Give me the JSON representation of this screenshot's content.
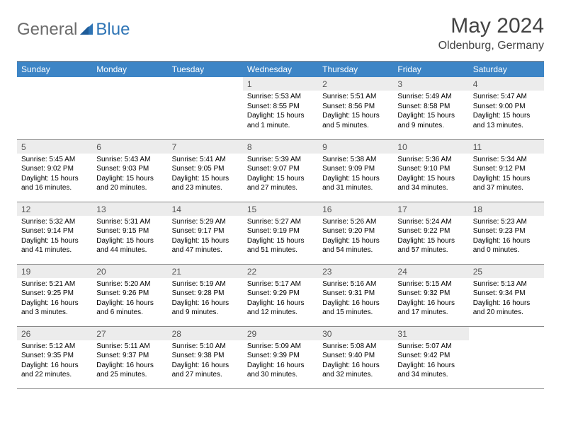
{
  "brand": {
    "general": "General",
    "blue": "Blue"
  },
  "title": "May 2024",
  "location": "Oldenburg, Germany",
  "colors": {
    "header_bg": "#3d85c6",
    "header_fg": "#ffffff",
    "daynum_bg": "#ececec",
    "daynum_fg": "#555555",
    "rule": "#888888",
    "logo_blue": "#2e74b5",
    "logo_gray": "#6b6b6b"
  },
  "dow": [
    "Sunday",
    "Monday",
    "Tuesday",
    "Wednesday",
    "Thursday",
    "Friday",
    "Saturday"
  ],
  "weeks": [
    [
      null,
      null,
      null,
      {
        "n": "1",
        "sr": "5:53 AM",
        "ss": "8:55 PM",
        "dl": "15 hours and 1 minute."
      },
      {
        "n": "2",
        "sr": "5:51 AM",
        "ss": "8:56 PM",
        "dl": "15 hours and 5 minutes."
      },
      {
        "n": "3",
        "sr": "5:49 AM",
        "ss": "8:58 PM",
        "dl": "15 hours and 9 minutes."
      },
      {
        "n": "4",
        "sr": "5:47 AM",
        "ss": "9:00 PM",
        "dl": "15 hours and 13 minutes."
      }
    ],
    [
      {
        "n": "5",
        "sr": "5:45 AM",
        "ss": "9:02 PM",
        "dl": "15 hours and 16 minutes."
      },
      {
        "n": "6",
        "sr": "5:43 AM",
        "ss": "9:03 PM",
        "dl": "15 hours and 20 minutes."
      },
      {
        "n": "7",
        "sr": "5:41 AM",
        "ss": "9:05 PM",
        "dl": "15 hours and 23 minutes."
      },
      {
        "n": "8",
        "sr": "5:39 AM",
        "ss": "9:07 PM",
        "dl": "15 hours and 27 minutes."
      },
      {
        "n": "9",
        "sr": "5:38 AM",
        "ss": "9:09 PM",
        "dl": "15 hours and 31 minutes."
      },
      {
        "n": "10",
        "sr": "5:36 AM",
        "ss": "9:10 PM",
        "dl": "15 hours and 34 minutes."
      },
      {
        "n": "11",
        "sr": "5:34 AM",
        "ss": "9:12 PM",
        "dl": "15 hours and 37 minutes."
      }
    ],
    [
      {
        "n": "12",
        "sr": "5:32 AM",
        "ss": "9:14 PM",
        "dl": "15 hours and 41 minutes."
      },
      {
        "n": "13",
        "sr": "5:31 AM",
        "ss": "9:15 PM",
        "dl": "15 hours and 44 minutes."
      },
      {
        "n": "14",
        "sr": "5:29 AM",
        "ss": "9:17 PM",
        "dl": "15 hours and 47 minutes."
      },
      {
        "n": "15",
        "sr": "5:27 AM",
        "ss": "9:19 PM",
        "dl": "15 hours and 51 minutes."
      },
      {
        "n": "16",
        "sr": "5:26 AM",
        "ss": "9:20 PM",
        "dl": "15 hours and 54 minutes."
      },
      {
        "n": "17",
        "sr": "5:24 AM",
        "ss": "9:22 PM",
        "dl": "15 hours and 57 minutes."
      },
      {
        "n": "18",
        "sr": "5:23 AM",
        "ss": "9:23 PM",
        "dl": "16 hours and 0 minutes."
      }
    ],
    [
      {
        "n": "19",
        "sr": "5:21 AM",
        "ss": "9:25 PM",
        "dl": "16 hours and 3 minutes."
      },
      {
        "n": "20",
        "sr": "5:20 AM",
        "ss": "9:26 PM",
        "dl": "16 hours and 6 minutes."
      },
      {
        "n": "21",
        "sr": "5:19 AM",
        "ss": "9:28 PM",
        "dl": "16 hours and 9 minutes."
      },
      {
        "n": "22",
        "sr": "5:17 AM",
        "ss": "9:29 PM",
        "dl": "16 hours and 12 minutes."
      },
      {
        "n": "23",
        "sr": "5:16 AM",
        "ss": "9:31 PM",
        "dl": "16 hours and 15 minutes."
      },
      {
        "n": "24",
        "sr": "5:15 AM",
        "ss": "9:32 PM",
        "dl": "16 hours and 17 minutes."
      },
      {
        "n": "25",
        "sr": "5:13 AM",
        "ss": "9:34 PM",
        "dl": "16 hours and 20 minutes."
      }
    ],
    [
      {
        "n": "26",
        "sr": "5:12 AM",
        "ss": "9:35 PM",
        "dl": "16 hours and 22 minutes."
      },
      {
        "n": "27",
        "sr": "5:11 AM",
        "ss": "9:37 PM",
        "dl": "16 hours and 25 minutes."
      },
      {
        "n": "28",
        "sr": "5:10 AM",
        "ss": "9:38 PM",
        "dl": "16 hours and 27 minutes."
      },
      {
        "n": "29",
        "sr": "5:09 AM",
        "ss": "9:39 PM",
        "dl": "16 hours and 30 minutes."
      },
      {
        "n": "30",
        "sr": "5:08 AM",
        "ss": "9:40 PM",
        "dl": "16 hours and 32 minutes."
      },
      {
        "n": "31",
        "sr": "5:07 AM",
        "ss": "9:42 PM",
        "dl": "16 hours and 34 minutes."
      },
      null
    ]
  ],
  "labels": {
    "sunrise": "Sunrise: ",
    "sunset": "Sunset: ",
    "daylight": "Daylight: "
  }
}
